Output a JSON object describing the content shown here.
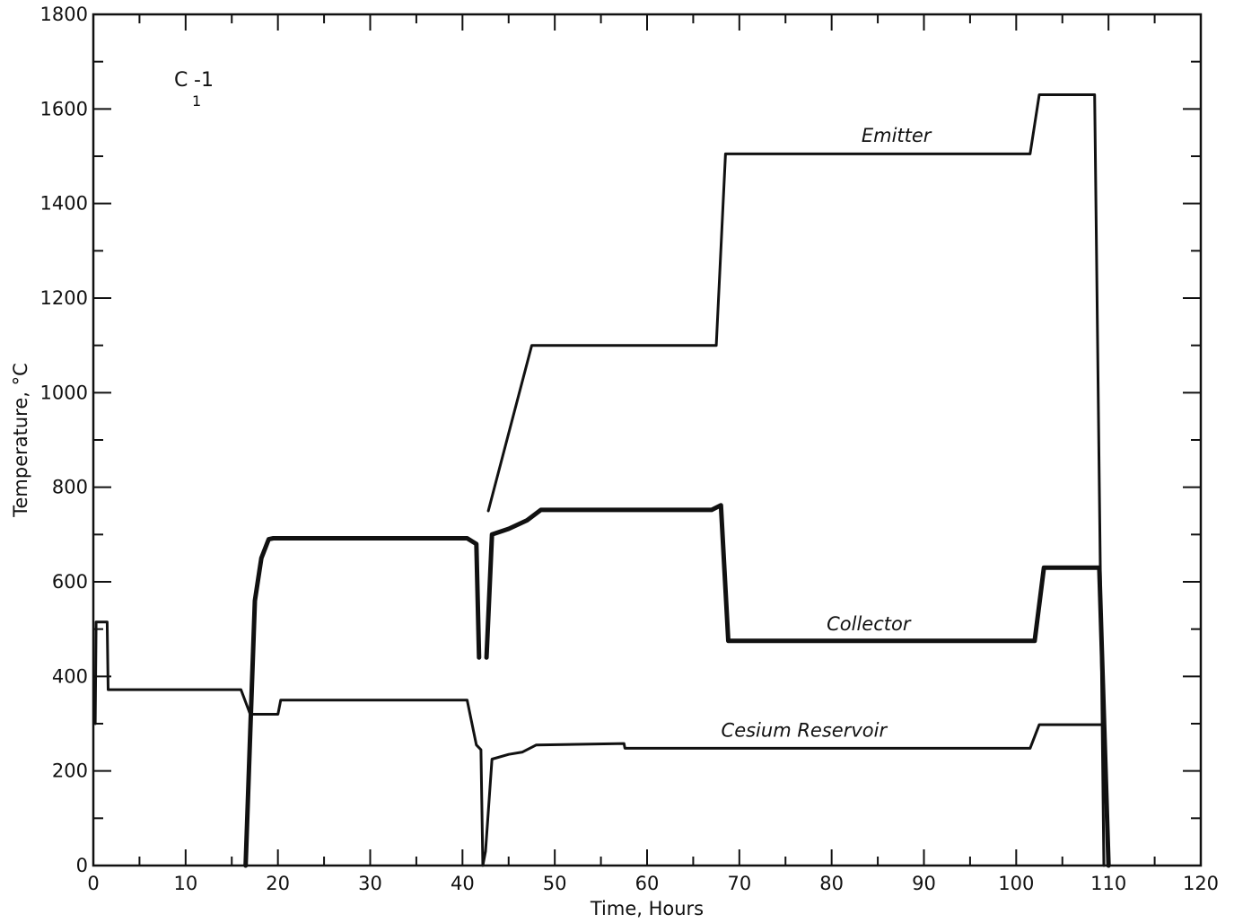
{
  "chart_data": {
    "type": "line",
    "tag": {
      "main": "C",
      "sub": "1",
      "suffix": "-1"
    },
    "xlabel": "Time, Hours",
    "ylabel": "Temperature, °C",
    "xlim": [
      0,
      120
    ],
    "ylim": [
      0,
      1800
    ],
    "xticks": [
      0,
      10,
      20,
      30,
      40,
      50,
      60,
      70,
      80,
      90,
      100,
      110,
      120
    ],
    "yticks": [
      0,
      200,
      400,
      600,
      800,
      1000,
      1200,
      1400,
      1600,
      1800
    ],
    "grid": false,
    "series": [
      {
        "name": "Emitter",
        "line_width": 3,
        "segments": [
          [
            [
              42.8,
              750
            ],
            [
              47.5,
              1100
            ],
            [
              67.5,
              1100
            ],
            [
              68.5,
              1505
            ],
            [
              101.5,
              1505
            ],
            [
              102.5,
              1630
            ],
            [
              108.5,
              1630
            ],
            [
              109.5,
              0
            ]
          ]
        ]
      },
      {
        "name": "Collector",
        "line_width": 5,
        "segments": [
          [
            [
              16.5,
              0
            ],
            [
              17.0,
              280
            ],
            [
              17.5,
              560
            ],
            [
              18.2,
              650
            ],
            [
              19.0,
              690
            ],
            [
              19.5,
              692
            ],
            [
              40.5,
              692
            ],
            [
              41.5,
              680
            ],
            [
              41.8,
              440
            ]
          ],
          [
            [
              42.6,
              440
            ],
            [
              43.2,
              700
            ],
            [
              45.0,
              712
            ],
            [
              47.0,
              730
            ],
            [
              48.5,
              752
            ],
            [
              67.0,
              752
            ],
            [
              68.0,
              762
            ],
            [
              68.8,
              475
            ],
            [
              102.0,
              475
            ],
            [
              103.0,
              630
            ],
            [
              109.0,
              630
            ],
            [
              110.0,
              0
            ]
          ]
        ]
      },
      {
        "name": "Cesium Reservoir",
        "line_width": 3,
        "segments": [
          [
            [
              0.2,
              300
            ],
            [
              0.3,
              515
            ],
            [
              1.5,
              515
            ],
            [
              1.6,
              372
            ],
            [
              16.0,
              372
            ],
            [
              17.0,
              320
            ],
            [
              20.0,
              320
            ],
            [
              20.3,
              350
            ],
            [
              40.5,
              350
            ],
            [
              41.5,
              255
            ],
            [
              42.0,
              245
            ],
            [
              42.2,
              0
            ],
            [
              42.5,
              30
            ],
            [
              43.2,
              225
            ],
            [
              45.0,
              235
            ],
            [
              46.5,
              240
            ],
            [
              48.0,
              255
            ],
            [
              57.5,
              258
            ],
            [
              57.6,
              248
            ],
            [
              101.5,
              248
            ],
            [
              102.5,
              298
            ],
            [
              109.5,
              298
            ],
            [
              110.0,
              0
            ]
          ]
        ]
      }
    ],
    "annotations": [
      {
        "series": "Emitter",
        "text": "Emitter",
        "x": 87,
        "y": 1530
      },
      {
        "series": "Collector",
        "text": "Collector",
        "x": 84,
        "y": 497
      },
      {
        "series": "Cesium Reservoir",
        "text": "Cesium Reservoir",
        "x": 77,
        "y": 272
      }
    ]
  }
}
